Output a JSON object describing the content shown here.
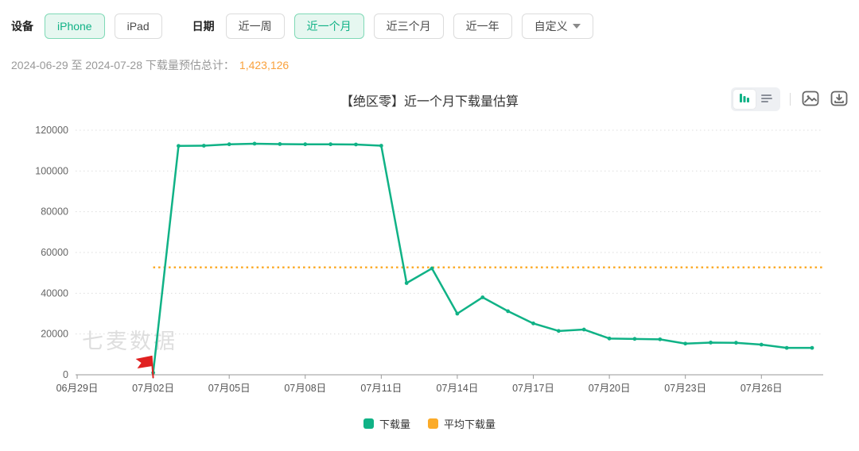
{
  "toolbar": {
    "device_label": "设备",
    "device_options": [
      {
        "label": "iPhone",
        "selected": true
      },
      {
        "label": "iPad",
        "selected": false
      }
    ],
    "date_label": "日期",
    "date_options": [
      {
        "label": "近一周",
        "selected": false
      },
      {
        "label": "近一个月",
        "selected": true
      },
      {
        "label": "近三个月",
        "selected": false
      },
      {
        "label": "近一年",
        "selected": false
      },
      {
        "label": "自定义",
        "selected": false,
        "caret": true
      }
    ]
  },
  "summary": {
    "range_text": "2024-06-29 至 2024-07-28 下载量预估总计：",
    "total": "1,423,126"
  },
  "chart_header": {
    "title": "【绝区零】近一个月下载量估算",
    "view_toggle": [
      {
        "name": "bar-chart-view",
        "active": true
      },
      {
        "name": "table-view",
        "active": false
      }
    ],
    "export_image_icon": "export-image",
    "download_icon": "download-data"
  },
  "watermark": "七麦数据",
  "legend": [
    {
      "label": "下载量",
      "color": "#10b286"
    },
    {
      "label": "平均下载量",
      "color": "#fbab29"
    }
  ],
  "colors": {
    "accent_green": "#10b286",
    "selected_bg": "#e6f7f0",
    "selected_border": "#7fd9b6",
    "orange": "#fbab29",
    "total_orange": "#f9a13c",
    "grid": "#dddddd",
    "axis_line": "#999999",
    "axis_label": "#666666",
    "flag_red": "#e02020",
    "watermark_gray": "#d9d9d9"
  },
  "chart_data": {
    "type": "line",
    "title": "【绝区零】近一个月下载量估算",
    "x": [
      "06月29日",
      "06月30日",
      "07月01日",
      "07月02日",
      "07月03日",
      "07月04日",
      "07月05日",
      "07月06日",
      "07月07日",
      "07月08日",
      "07月09日",
      "07月10日",
      "07月11日",
      "07月12日",
      "07月13日",
      "07月14日",
      "07月15日",
      "07月16日",
      "07月17日",
      "07月18日",
      "07月19日",
      "07月20日",
      "07月21日",
      "07月22日",
      "07月23日",
      "07月24日",
      "07月25日",
      "07月26日",
      "07月27日",
      "07月28日"
    ],
    "x_label_every": 3,
    "ylim": [
      0,
      120000
    ],
    "ytick_step": 20000,
    "grid": true,
    "legend_position": "bottom",
    "series": [
      {
        "name": "下载量",
        "type": "line",
        "color": "#10b286",
        "values": [
          null,
          null,
          null,
          1000,
          112300,
          112400,
          113100,
          113400,
          113200,
          113100,
          113100,
          113000,
          112400,
          45000,
          52200,
          30000,
          38000,
          31200,
          25200,
          21500,
          22200,
          17800,
          17600,
          17400,
          15300,
          15800,
          15700,
          14800,
          13200,
          13200
        ]
      },
      {
        "name": "平均下载量",
        "type": "horizontal-dotted-line",
        "color": "#fbab29",
        "value": 52708,
        "start_index": 3
      }
    ],
    "marker": {
      "type": "flag",
      "x_index": 3,
      "color": "#e02020",
      "note": "release-day flag at 07月02日"
    }
  }
}
